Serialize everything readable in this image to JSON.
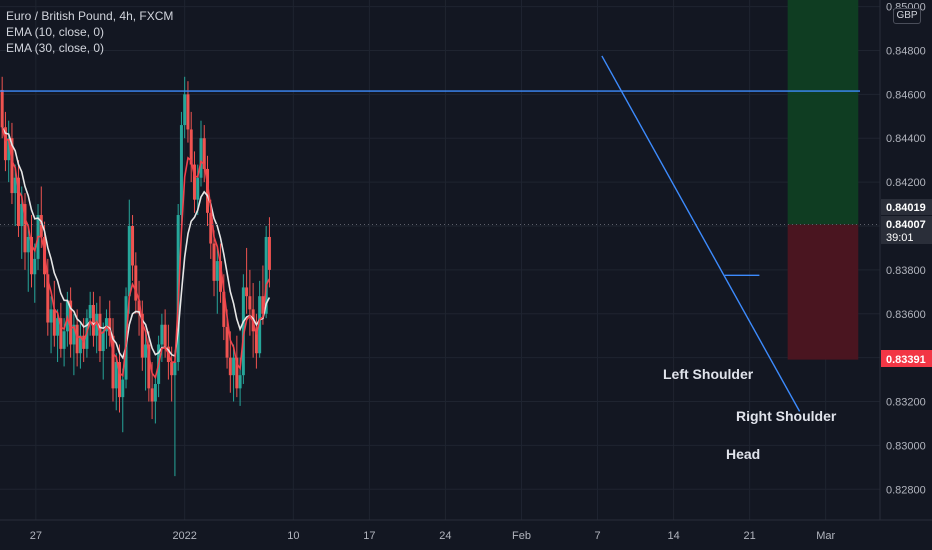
{
  "legend": {
    "symbol": "Euro / British Pound, 4h, FXCM",
    "ema_fast": "EMA (10, close, 0)",
    "ema_slow": "EMA (30, close, 0)"
  },
  "currency": "GBP",
  "colors": {
    "background": "#131722",
    "grid": "#1f2430",
    "up": "#26a69a",
    "down": "#ef5350",
    "ema_fast": "#f0434c",
    "ema_slow": "#e6e6e6",
    "trendline": "#3d8bfd",
    "profit_zone": "#0f3d22",
    "loss_zone": "#4a1520",
    "text": "#d1d4dc",
    "price_badge_dark": "#2a2e39",
    "price_badge_red": "#f23645"
  },
  "chart_data": {
    "type": "candlestick",
    "y_ticks": [
      "0.85000",
      "0.84800",
      "0.84600",
      "0.84400",
      "0.84200",
      "0.84000",
      "0.83800",
      "0.83600",
      "0.83400",
      "0.83200",
      "0.83000",
      "0.82800"
    ],
    "x_ticks": [
      {
        "x": 21.3,
        "label": "27"
      },
      {
        "x": 35.0,
        "label": "2022"
      },
      {
        "x": 45.0,
        "label": "10"
      },
      {
        "x": 52.0,
        "label": "17"
      },
      {
        "x": 59.0,
        "label": "24"
      },
      {
        "x": 66.0,
        "label": "Feb"
      },
      {
        "x": 73.0,
        "label": "7"
      },
      {
        "x": 80.0,
        "label": "14"
      },
      {
        "x": 87.0,
        "label": "21"
      },
      {
        "x": 94.0,
        "label": "Mar"
      }
    ],
    "x_range": [
      18,
      99
    ],
    "y_range": [
      0.8266,
      0.8503
    ],
    "price_labels": {
      "current_high": "0.84019",
      "current_price": "0.84007",
      "countdown": "39:01",
      "stop_level": "0.83391"
    },
    "current_price_value": 0.84007,
    "stop_value": 0.83391,
    "horizontal_resistance": 0.84615,
    "neckline": {
      "x0": 84.7,
      "x1": 87.9,
      "y": 0.83775
    },
    "descending_trendline": {
      "x0": 73.4,
      "y0": 0.84775,
      "x1": 91.6,
      "y1": 0.83155
    },
    "position": {
      "x0": 90.5,
      "x1": 97.0,
      "entry": 0.84007,
      "target": 0.851,
      "stop": 0.83391
    },
    "annotations": [
      "Left Shoulder",
      "Right Shoulder",
      "Head"
    ],
    "candles_ohlc": [
      [
        18.2,
        0.8462,
        0.8468,
        0.844,
        0.8445
      ],
      [
        18.5,
        0.8445,
        0.8452,
        0.8425,
        0.843
      ],
      [
        18.8,
        0.843,
        0.8448,
        0.842,
        0.844
      ],
      [
        19.1,
        0.844,
        0.8447,
        0.841,
        0.8415
      ],
      [
        19.4,
        0.8415,
        0.8428,
        0.84,
        0.8422
      ],
      [
        19.7,
        0.8422,
        0.843,
        0.8395,
        0.84
      ],
      [
        20.0,
        0.84,
        0.8418,
        0.8385,
        0.841
      ],
      [
        20.3,
        0.841,
        0.8415,
        0.838,
        0.8388
      ],
      [
        20.6,
        0.8388,
        0.84,
        0.837,
        0.8395
      ],
      [
        20.9,
        0.8395,
        0.8405,
        0.8372,
        0.8378
      ],
      [
        21.2,
        0.8378,
        0.8392,
        0.8365,
        0.8385
      ],
      [
        21.5,
        0.8385,
        0.841,
        0.838,
        0.8405
      ],
      [
        21.8,
        0.8405,
        0.8418,
        0.839,
        0.8395
      ],
      [
        22.1,
        0.8395,
        0.8402,
        0.8372,
        0.8378
      ],
      [
        22.4,
        0.8378,
        0.8385,
        0.835,
        0.8356
      ],
      [
        22.7,
        0.8356,
        0.8368,
        0.8342,
        0.8362
      ],
      [
        23.0,
        0.8362,
        0.8375,
        0.8345,
        0.835
      ],
      [
        23.3,
        0.835,
        0.8362,
        0.8338,
        0.8358
      ],
      [
        23.6,
        0.8358,
        0.8365,
        0.834,
        0.8344
      ],
      [
        23.9,
        0.8344,
        0.8358,
        0.8336,
        0.8352
      ],
      [
        24.2,
        0.8352,
        0.837,
        0.8345,
        0.8366
      ],
      [
        24.5,
        0.8366,
        0.8372,
        0.834,
        0.8346
      ],
      [
        24.8,
        0.8346,
        0.836,
        0.8332,
        0.8355
      ],
      [
        25.1,
        0.8355,
        0.8362,
        0.8336,
        0.8342
      ],
      [
        25.4,
        0.8342,
        0.8356,
        0.8335,
        0.835
      ],
      [
        25.7,
        0.835,
        0.8358,
        0.8338,
        0.8344
      ],
      [
        26.0,
        0.8344,
        0.8362,
        0.834,
        0.8358
      ],
      [
        26.3,
        0.8358,
        0.837,
        0.835,
        0.8364
      ],
      [
        26.6,
        0.8364,
        0.837,
        0.8345,
        0.835
      ],
      [
        26.9,
        0.835,
        0.8365,
        0.8342,
        0.836
      ],
      [
        27.2,
        0.836,
        0.8368,
        0.8338,
        0.8343
      ],
      [
        27.5,
        0.8343,
        0.8356,
        0.833,
        0.8352
      ],
      [
        27.8,
        0.8352,
        0.8362,
        0.8344,
        0.8358
      ],
      [
        28.1,
        0.8358,
        0.8366,
        0.8345,
        0.835
      ],
      [
        28.4,
        0.835,
        0.8358,
        0.832,
        0.8326
      ],
      [
        28.7,
        0.8326,
        0.8342,
        0.8316,
        0.8338
      ],
      [
        29.0,
        0.8338,
        0.8346,
        0.8315,
        0.8322
      ],
      [
        29.3,
        0.8322,
        0.8335,
        0.8306,
        0.833
      ],
      [
        29.6,
        0.833,
        0.8372,
        0.8326,
        0.8368
      ],
      [
        29.9,
        0.8368,
        0.8412,
        0.836,
        0.84
      ],
      [
        30.2,
        0.84,
        0.8405,
        0.8375,
        0.8382
      ],
      [
        30.5,
        0.8382,
        0.8388,
        0.836,
        0.8366
      ],
      [
        30.8,
        0.8366,
        0.8375,
        0.835,
        0.836
      ],
      [
        31.1,
        0.836,
        0.8366,
        0.8334,
        0.834
      ],
      [
        31.4,
        0.834,
        0.8352,
        0.8325,
        0.8346
      ],
      [
        31.7,
        0.8346,
        0.8352,
        0.832,
        0.8326
      ],
      [
        32.0,
        0.8326,
        0.8338,
        0.8312,
        0.832
      ],
      [
        32.3,
        0.832,
        0.8332,
        0.831,
        0.8328
      ],
      [
        32.6,
        0.8328,
        0.835,
        0.8322,
        0.8346
      ],
      [
        32.9,
        0.8346,
        0.836,
        0.8338,
        0.8355
      ],
      [
        33.2,
        0.8355,
        0.8362,
        0.834,
        0.8345
      ],
      [
        33.5,
        0.8345,
        0.8355,
        0.833,
        0.8338
      ],
      [
        33.8,
        0.8338,
        0.8345,
        0.832,
        0.8332
      ],
      [
        34.1,
        0.8332,
        0.8342,
        0.8286,
        0.8338
      ],
      [
        34.4,
        0.8338,
        0.841,
        0.8334,
        0.8405
      ],
      [
        34.7,
        0.8405,
        0.8452,
        0.8398,
        0.8446
      ],
      [
        35.0,
        0.8446,
        0.8468,
        0.844,
        0.846
      ],
      [
        35.3,
        0.846,
        0.8466,
        0.8438,
        0.8444
      ],
      [
        35.6,
        0.8444,
        0.8452,
        0.842,
        0.8428
      ],
      [
        35.9,
        0.8428,
        0.8434,
        0.8406,
        0.8412
      ],
      [
        36.2,
        0.8412,
        0.8428,
        0.8405,
        0.8422
      ],
      [
        36.5,
        0.8422,
        0.8448,
        0.8418,
        0.844
      ],
      [
        36.8,
        0.844,
        0.8446,
        0.842,
        0.8426
      ],
      [
        37.1,
        0.8426,
        0.8432,
        0.84,
        0.8406
      ],
      [
        37.4,
        0.8406,
        0.8412,
        0.8385,
        0.8392
      ],
      [
        37.7,
        0.8392,
        0.8398,
        0.8368,
        0.8375
      ],
      [
        38.0,
        0.8375,
        0.839,
        0.836,
        0.8384
      ],
      [
        38.3,
        0.8384,
        0.8392,
        0.8365,
        0.837
      ],
      [
        38.6,
        0.837,
        0.8378,
        0.8348,
        0.8354
      ],
      [
        38.9,
        0.8354,
        0.8362,
        0.8335,
        0.834
      ],
      [
        39.2,
        0.834,
        0.8352,
        0.8324,
        0.8332
      ],
      [
        39.5,
        0.8332,
        0.8346,
        0.832,
        0.834
      ],
      [
        39.8,
        0.834,
        0.835,
        0.8322,
        0.8326
      ],
      [
        40.1,
        0.8326,
        0.834,
        0.8318,
        0.8332
      ],
      [
        40.4,
        0.8332,
        0.8378,
        0.8328,
        0.8372
      ],
      [
        40.7,
        0.8372,
        0.839,
        0.836,
        0.8368
      ],
      [
        41.0,
        0.8368,
        0.838,
        0.835,
        0.8362
      ],
      [
        41.3,
        0.8362,
        0.8374,
        0.834,
        0.8352
      ],
      [
        41.6,
        0.8352,
        0.836,
        0.8335,
        0.8342
      ],
      [
        41.9,
        0.8342,
        0.8375,
        0.834,
        0.8368
      ],
      [
        42.2,
        0.8368,
        0.8382,
        0.8355,
        0.836
      ],
      [
        42.5,
        0.836,
        0.84,
        0.8358,
        0.8395
      ],
      [
        42.8,
        0.8395,
        0.8404,
        0.8372,
        0.838
      ]
    ]
  }
}
